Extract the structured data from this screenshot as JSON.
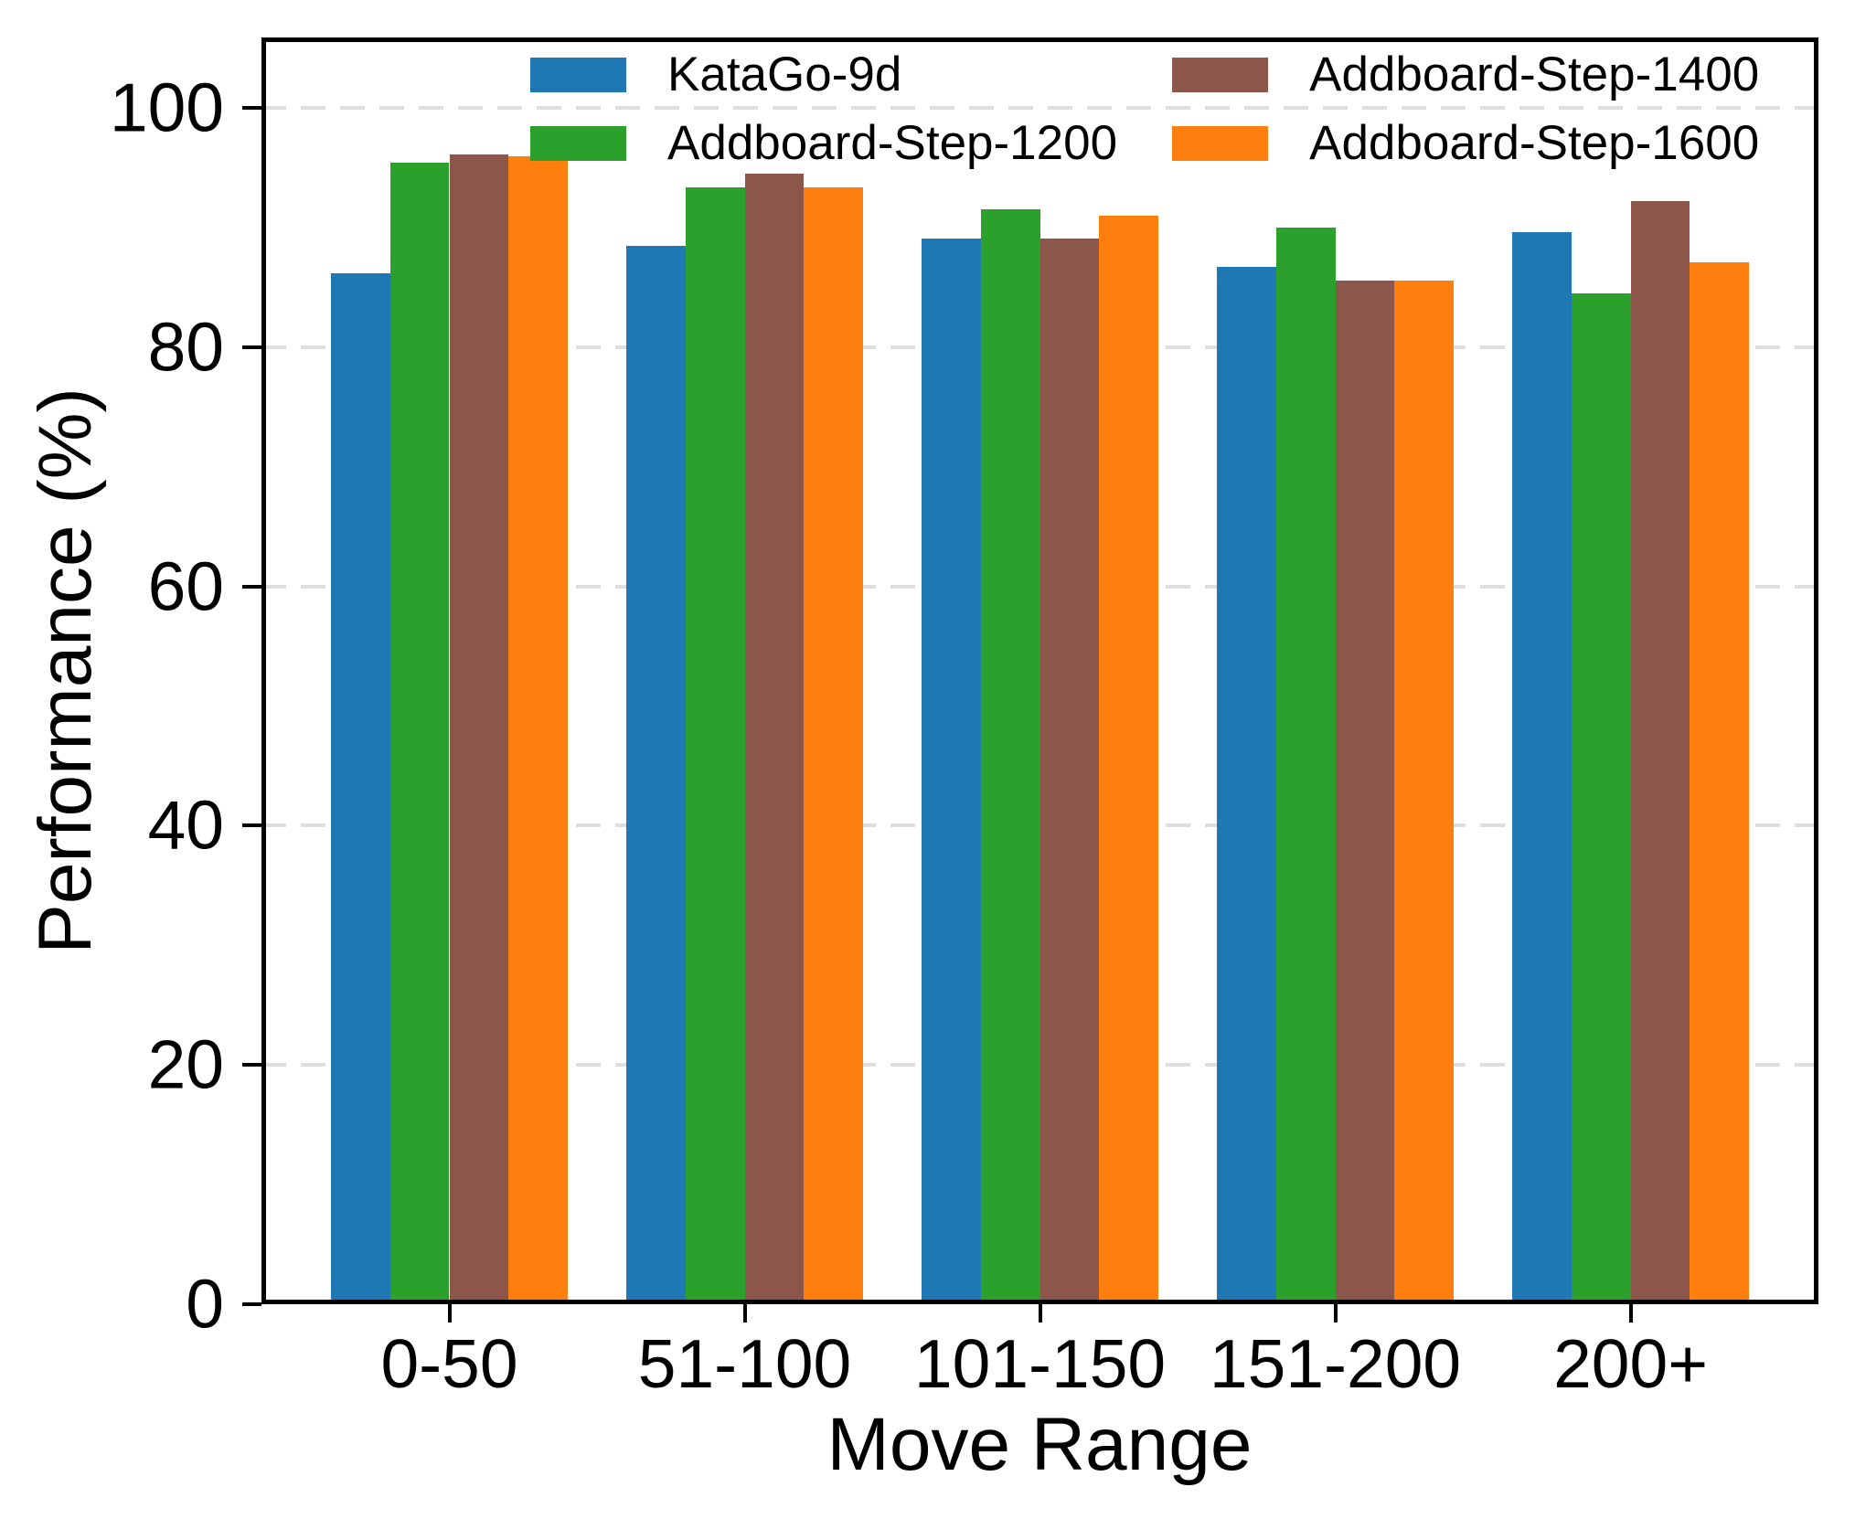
{
  "chart_data": {
    "type": "bar",
    "title": "",
    "xlabel": "Move Range",
    "ylabel": "Performance (%)",
    "categories": [
      "0-50",
      "51-100",
      "101-150",
      "151-200",
      "200+"
    ],
    "series": [
      {
        "name": "KataGo-9d",
        "color": "#1f77b4",
        "values": [
          86.2,
          88.5,
          89.1,
          86.7,
          89.6
        ]
      },
      {
        "name": "Addboard-Step-1200",
        "color": "#2ca02c",
        "values": [
          95.4,
          93.4,
          91.5,
          90.0,
          84.5
        ]
      },
      {
        "name": "Addboard-Step-1400",
        "color": "#8c564b",
        "values": [
          96.1,
          94.5,
          89.1,
          85.6,
          92.2
        ]
      },
      {
        "name": "Addboard-Step-1600",
        "color": "#ff7f0e",
        "values": [
          96.0,
          93.4,
          91.0,
          85.6,
          87.1
        ]
      }
    ],
    "yticks": [
      0,
      20,
      40,
      60,
      80,
      100
    ],
    "ylim": [
      0,
      105.9
    ],
    "grid": "horizontal-dashed",
    "gridline_color": "#dedede",
    "legend_position": "upper-inside-two-columns",
    "legend_entries": [
      "KataGo-9d",
      "Addboard-Step-1200",
      "Addboard-Step-1400",
      "Addboard-Step-1600"
    ]
  }
}
